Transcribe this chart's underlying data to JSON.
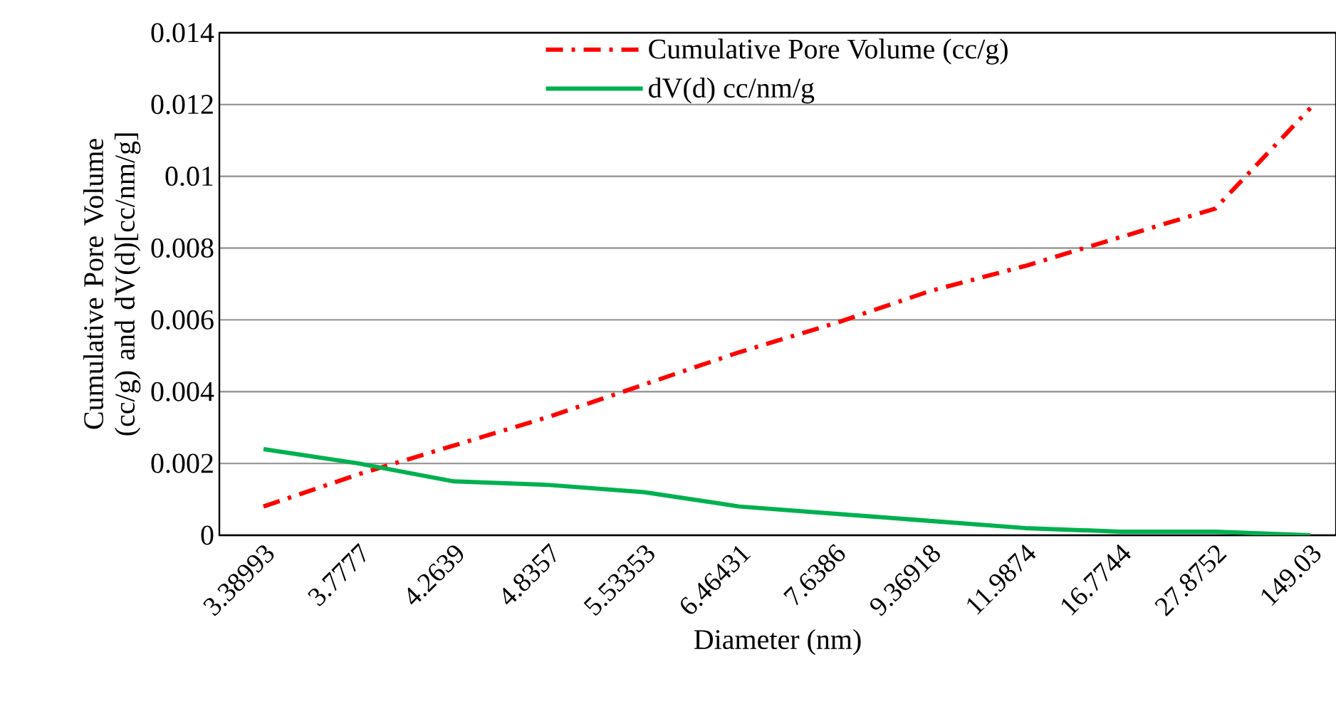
{
  "chart_data": {
    "type": "line",
    "xlabel": "Diameter (nm)",
    "ylabel": "Cumulative Pore Volume (cc/g) and dV(d)[cc/nm/g]",
    "categories": [
      "3.38993",
      "3.7777",
      "4.2639",
      "4.8357",
      "5.53353",
      "6.46431",
      "7.6386",
      "9.36918",
      "11.9874",
      "16.7744",
      "27.8752",
      "149.03"
    ],
    "series": [
      {
        "name": "Cumulative Pore Volume (cc/g)",
        "color": "#ff0000",
        "line_style": "dashdot",
        "values": [
          0.0008,
          0.0017,
          0.0025,
          0.0033,
          0.0042,
          0.0051,
          0.0059,
          0.0068,
          0.0075,
          0.0083,
          0.0091,
          0.0119
        ]
      },
      {
        "name": "dV(d) cc/nm/g",
        "color": "#00b050",
        "line_style": "solid",
        "values": [
          0.0024,
          0.002,
          0.0015,
          0.0014,
          0.0012,
          0.0008,
          0.0006,
          0.0004,
          0.0002,
          0.0001,
          0.0001,
          0.0
        ]
      }
    ],
    "ylim": [
      0,
      0.014
    ],
    "yticks": [
      0,
      0.002,
      0.004,
      0.006,
      0.008,
      0.01,
      0.012,
      0.014
    ],
    "grid": "y",
    "legend": "top",
    "marker": "none"
  }
}
